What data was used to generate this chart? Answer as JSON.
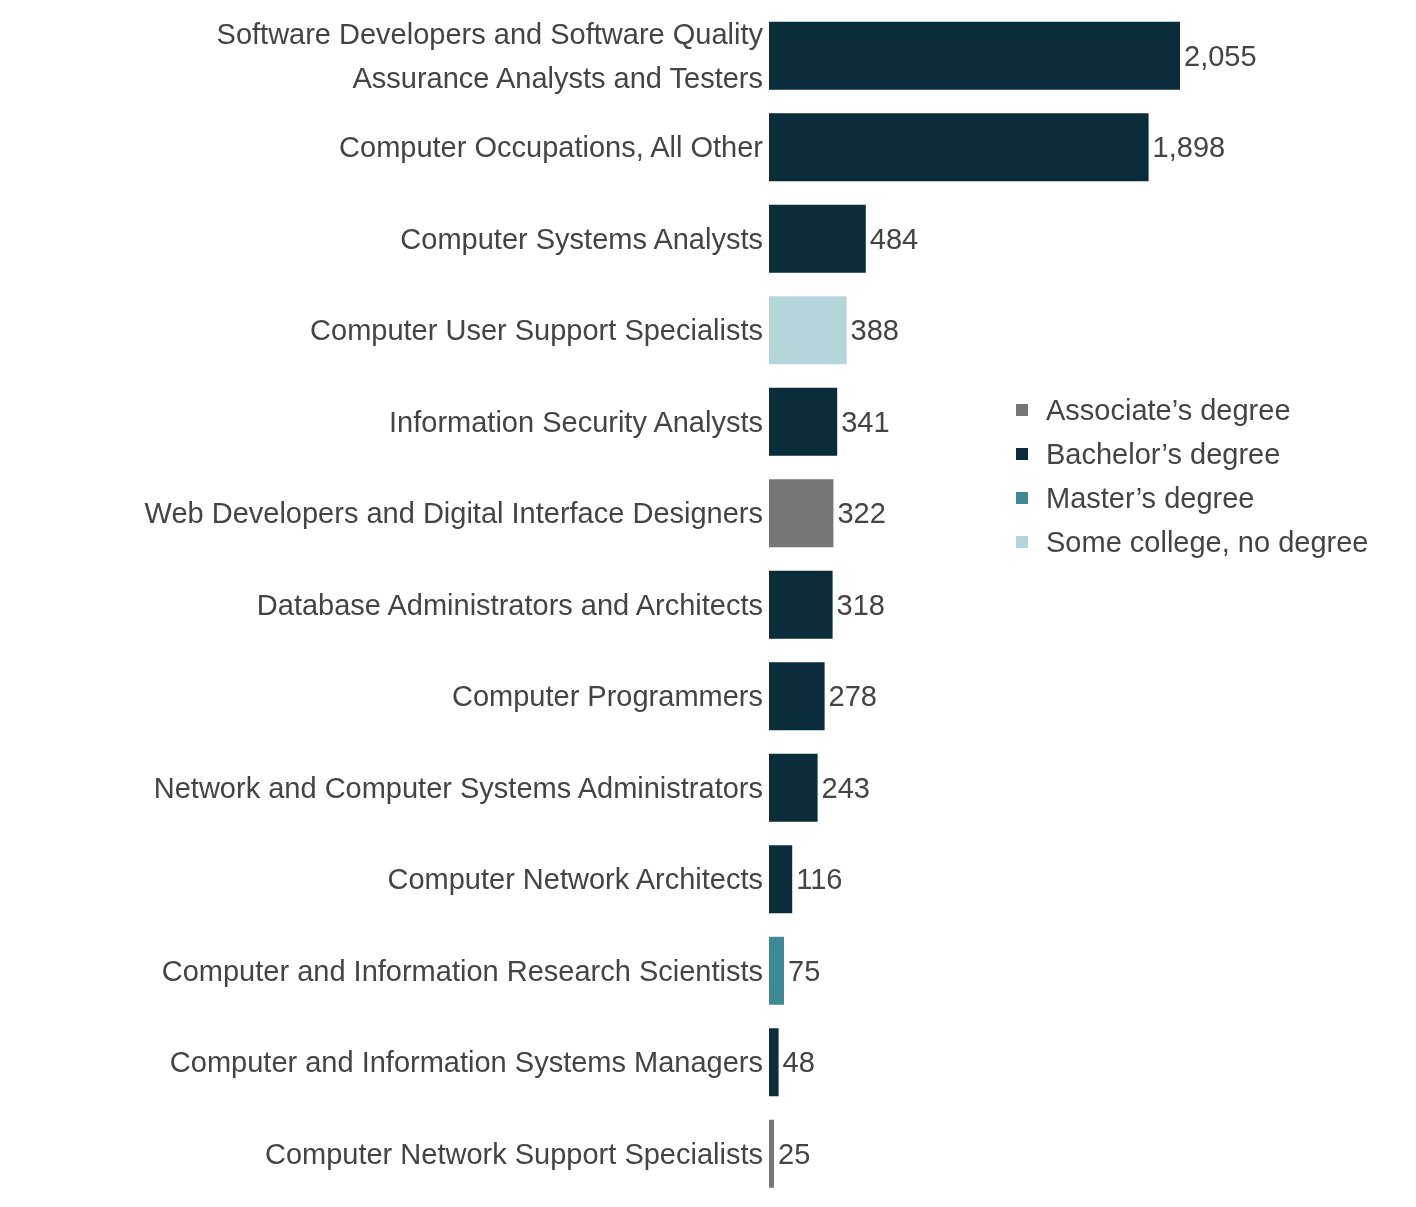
{
  "chart_data": {
    "type": "bar",
    "orientation": "horizontal",
    "data_labels": true,
    "legend": "right",
    "categories": [
      "Software Developers and Software Quality Assurance Analysts and Testers",
      "Computer Occupations, All Other",
      "Computer Systems Analysts",
      "Computer User Support Specialists",
      "Information Security Analysts",
      "Web Developers and Digital Interface Designers",
      "Database Administrators and Architects",
      "Computer Programmers",
      "Network and Computer Systems Administrators",
      "Computer Network Architects",
      "Computer and Information Research Scientists",
      "Computer and Information Systems Managers",
      "Computer Network Support Specialists"
    ],
    "series": [
      {
        "name": "Associate’s degree",
        "color": "#767676",
        "values": [
          null,
          null,
          null,
          null,
          null,
          322,
          null,
          null,
          null,
          null,
          null,
          null,
          25
        ]
      },
      {
        "name": "Bachelor’s degree",
        "color": "#0b2c3b",
        "values": [
          2055,
          1898,
          484,
          null,
          341,
          null,
          318,
          278,
          243,
          116,
          null,
          48,
          null
        ],
        "value_labels": [
          "2,055",
          "1,898",
          "484",
          null,
          "341",
          null,
          "318",
          "278",
          "243",
          "116",
          null,
          "48",
          null
        ]
      },
      {
        "name": "Master’s degree",
        "color": "#3d8a94",
        "values": [
          null,
          null,
          null,
          null,
          null,
          null,
          null,
          null,
          null,
          null,
          75,
          null,
          null
        ]
      },
      {
        "name": "Some college, no degree",
        "color": "#b4d6db",
        "values": [
          null,
          null,
          null,
          388,
          null,
          null,
          null,
          null,
          null,
          null,
          null,
          null,
          null
        ]
      }
    ]
  }
}
